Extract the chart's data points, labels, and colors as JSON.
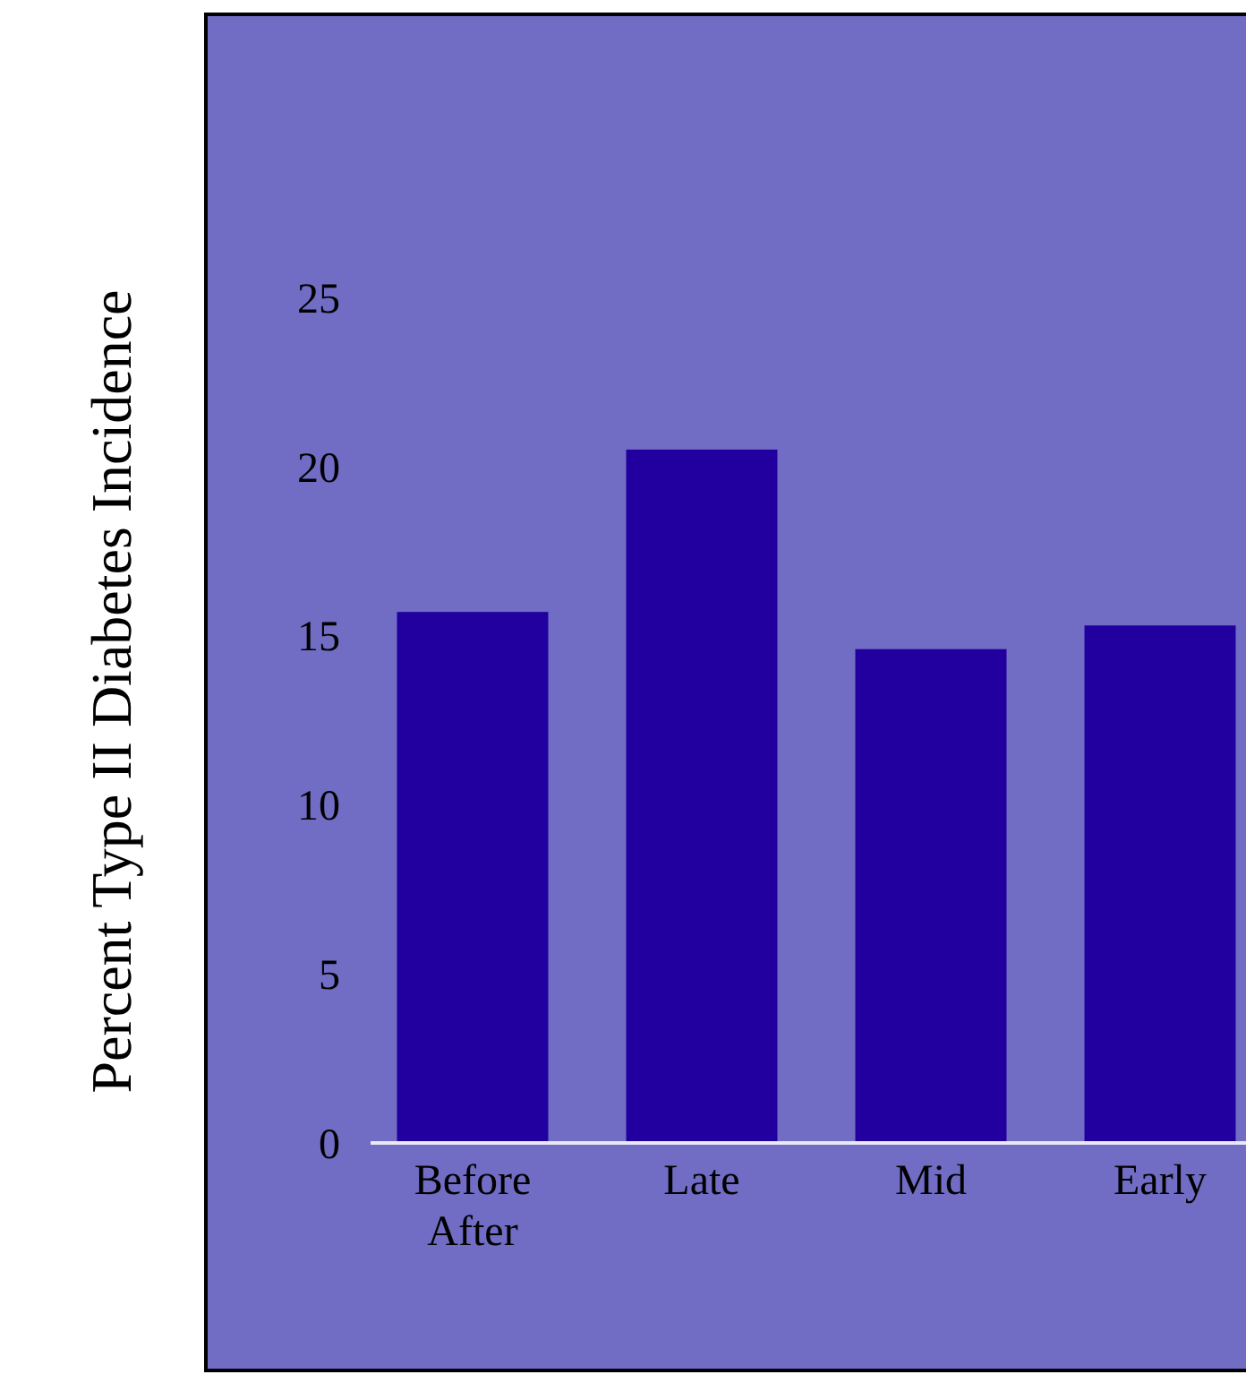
{
  "chart_data": {
    "type": "bar",
    "ylabel": "Percent Type II Diabetes Incidence",
    "categories": [
      "Before After",
      "Late",
      "Mid",
      "Early"
    ],
    "values": [
      15.7,
      20.5,
      14.6,
      15.3
    ],
    "color": "#2200a0",
    "ylim": [
      0,
      25
    ],
    "yticks": [
      0,
      5,
      10,
      15,
      20,
      25
    ]
  }
}
